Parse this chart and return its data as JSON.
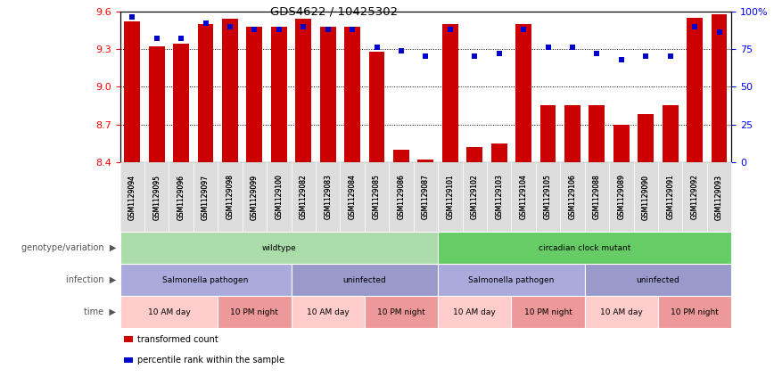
{
  "title": "GDS4622 / 10425302",
  "samples": [
    "GSM1129094",
    "GSM1129095",
    "GSM1129096",
    "GSM1129097",
    "GSM1129098",
    "GSM1129099",
    "GSM1129100",
    "GSM1129082",
    "GSM1129083",
    "GSM1129084",
    "GSM1129085",
    "GSM1129086",
    "GSM1129087",
    "GSM1129101",
    "GSM1129102",
    "GSM1129103",
    "GSM1129104",
    "GSM1129105",
    "GSM1129106",
    "GSM1129088",
    "GSM1129089",
    "GSM1129090",
    "GSM1129091",
    "GSM1129092",
    "GSM1129093"
  ],
  "red_values": [
    9.52,
    9.32,
    9.34,
    9.5,
    9.54,
    9.48,
    9.48,
    9.54,
    9.48,
    9.48,
    9.28,
    8.5,
    8.42,
    9.5,
    8.52,
    8.55,
    9.5,
    8.85,
    8.85,
    8.85,
    8.7,
    8.78,
    8.85,
    9.55,
    9.58
  ],
  "blue_values": [
    96,
    82,
    82,
    92,
    90,
    88,
    88,
    90,
    88,
    88,
    76,
    74,
    70,
    88,
    70,
    72,
    88,
    76,
    76,
    72,
    68,
    70,
    70,
    90,
    86
  ],
  "ylim_left": [
    8.4,
    9.6
  ],
  "ylim_right": [
    0,
    100
  ],
  "yticks_left": [
    8.4,
    8.7,
    9.0,
    9.3,
    9.6
  ],
  "yticks_right": [
    0,
    25,
    50,
    75,
    100
  ],
  "bar_color": "#cc0000",
  "dot_color": "#0000cc",
  "bar_width": 0.65,
  "annotation_rows": [
    {
      "label": "genotype/variation",
      "sections": [
        {
          "text": "wildtype",
          "span": 13,
          "color": "#aaddaa"
        },
        {
          "text": "circadian clock mutant",
          "span": 12,
          "color": "#66cc66"
        }
      ]
    },
    {
      "label": "infection",
      "sections": [
        {
          "text": "Salmonella pathogen",
          "span": 7,
          "color": "#aaaadd"
        },
        {
          "text": "uninfected",
          "span": 6,
          "color": "#9999cc"
        },
        {
          "text": "Salmonella pathogen",
          "span": 6,
          "color": "#aaaadd"
        },
        {
          "text": "uninfected",
          "span": 6,
          "color": "#9999cc"
        }
      ]
    },
    {
      "label": "time",
      "sections": [
        {
          "text": "10 AM day",
          "span": 4,
          "color": "#ffcccc"
        },
        {
          "text": "10 PM night",
          "span": 3,
          "color": "#ee9999"
        },
        {
          "text": "10 AM day",
          "span": 3,
          "color": "#ffcccc"
        },
        {
          "text": "10 PM night",
          "span": 3,
          "color": "#ee9999"
        },
        {
          "text": "10 AM day",
          "span": 3,
          "color": "#ffcccc"
        },
        {
          "text": "10 PM night",
          "span": 3,
          "color": "#ee9999"
        },
        {
          "text": "10 AM day",
          "span": 3,
          "color": "#ffcccc"
        },
        {
          "text": "10 PM night",
          "span": 3,
          "color": "#ee9999"
        }
      ]
    }
  ],
  "legend_items": [
    {
      "color": "#cc0000",
      "label": "transformed count"
    },
    {
      "color": "#0000cc",
      "label": "percentile rank within the sample"
    }
  ],
  "xtick_bg_color": "#cccccc",
  "left_label_color": "#888888"
}
